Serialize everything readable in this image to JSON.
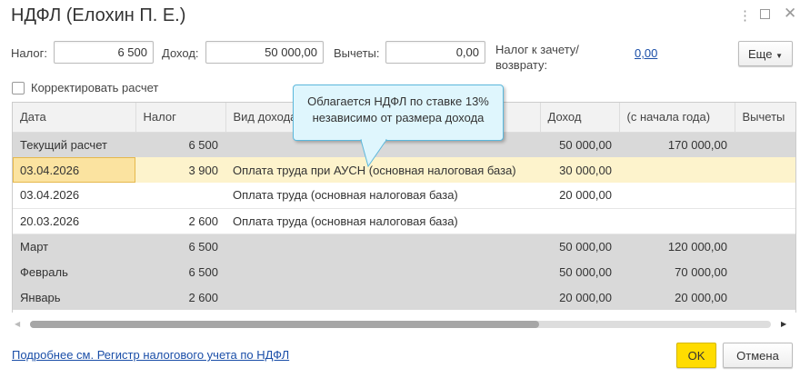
{
  "window": {
    "title": "НДФЛ (Елохин П. Е.)",
    "more_icon": "vertical-dots-icon",
    "maximize_icon": "square-icon",
    "close_icon": "x-icon"
  },
  "summary": {
    "tax_label": "Налог:",
    "tax_value": "6 500",
    "income_label": "Доход:",
    "income_value": "50 000,00",
    "deductions_label": "Вычеты:",
    "deductions_value": "0,00",
    "offset_label_1": "Налог к зачету/",
    "offset_label_2": "возврату:",
    "offset_value": "0,00",
    "more_button": "Еще"
  },
  "correct_checkbox": {
    "label": "Корректировать расчет",
    "checked": false
  },
  "tooltip": {
    "line1": "Облагается НДФЛ по ставке 13%",
    "line2": "независимо от размера дохода"
  },
  "table": {
    "columns": [
      "Дата",
      "Налог",
      "Вид дохода",
      "Доход",
      "(с начала года)",
      "Вычеты"
    ],
    "rows": [
      {
        "type": "group",
        "date": "Текущий расчет",
        "tax": "6 500",
        "kind": "",
        "income": "50 000,00",
        "ytd": "170 000,00",
        "ded": ""
      },
      {
        "type": "selected",
        "date": "03.04.2026",
        "tax": "3 900",
        "kind": "Оплата труда при АУСН (основная налоговая база)",
        "income": "30 000,00",
        "ytd": "",
        "ded": ""
      },
      {
        "type": "normal",
        "date": "03.04.2026",
        "tax": "",
        "kind": "Оплата труда (основная налоговая база)",
        "income": "20 000,00",
        "ytd": "",
        "ded": ""
      },
      {
        "type": "normal",
        "date": "20.03.2026",
        "tax": "2 600",
        "kind": "Оплата труда (основная налоговая база)",
        "income": "",
        "ytd": "",
        "ded": ""
      },
      {
        "type": "group",
        "date": "Март",
        "tax": "6 500",
        "kind": "",
        "income": "50 000,00",
        "ytd": "120 000,00",
        "ded": ""
      },
      {
        "type": "group",
        "date": "Февраль",
        "tax": "6 500",
        "kind": "",
        "income": "50 000,00",
        "ytd": "70 000,00",
        "ded": ""
      },
      {
        "type": "group",
        "date": "Январь",
        "tax": "2 600",
        "kind": "",
        "income": "20 000,00",
        "ytd": "20 000,00",
        "ded": ""
      }
    ]
  },
  "footer": {
    "register_link": "Подробнее см. Регистр налогового учета по НДФЛ",
    "ok": "OK",
    "cancel": "Отмена"
  },
  "colors": {
    "ok_button": "#ffdc00",
    "link": "#1a4ea8",
    "tooltip_bg": "#dff6fd",
    "group_row": "#d9d9d9"
  }
}
